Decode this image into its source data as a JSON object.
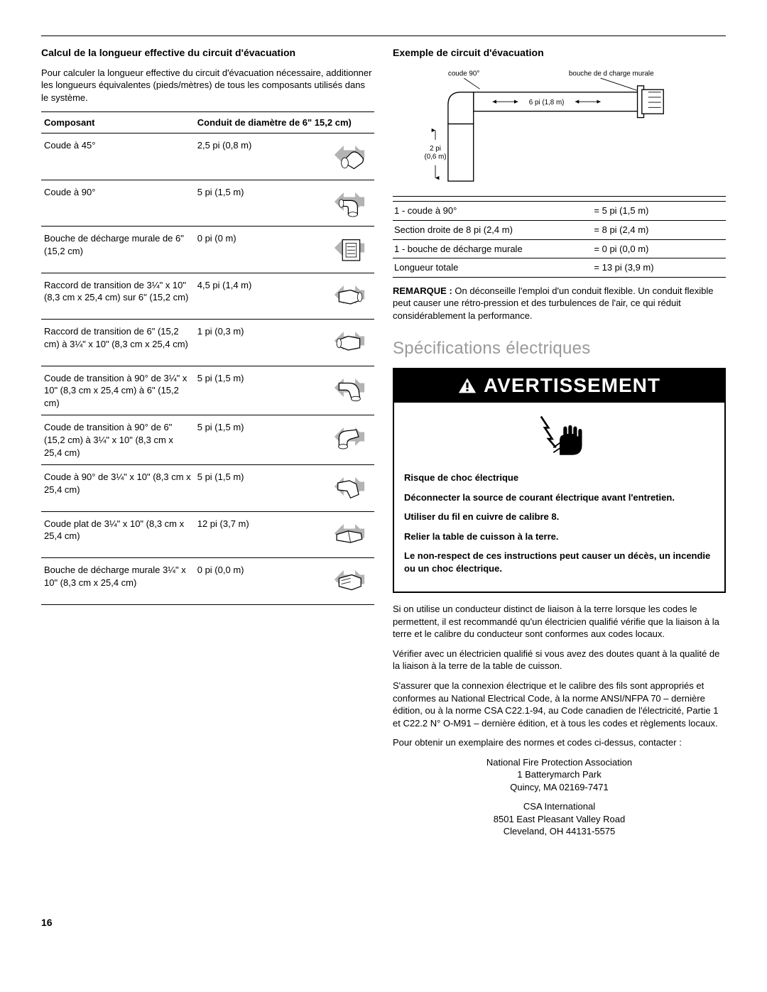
{
  "left": {
    "title": "Calcul de la longueur effective du circuit d'évacuation",
    "intro": "Pour calculer la longueur effective du circuit d'évacuation nécessaire, additionner les longueurs équivalentes (pieds/mètres) de tous les composants utilisés dans le système.",
    "table": {
      "header_component": "Composant",
      "header_duct": "Conduit de diamètre de 6\" 15,2 cm)",
      "rows": [
        {
          "component": "Coude à 45°",
          "length": "2,5 pi (0,8 m)"
        },
        {
          "component": "Coude à 90°",
          "length": "5 pi (1,5 m)"
        },
        {
          "component": "Bouche de décharge murale de 6\" (15,2 cm)",
          "length": "0 pi (0 m)"
        },
        {
          "component": "Raccord de transition de 3¼\" x 10\" (8,3 cm x 25,4 cm) sur 6\" (15,2 cm)",
          "length": "4,5 pi (1,4 m)"
        },
        {
          "component": "Raccord de transition de 6\" (15,2 cm) à 3¼\" x 10\" (8,3 cm x 25,4 cm)",
          "length": "1 pi (0,3 m)"
        },
        {
          "component": "Coude de transition à 90° de 3¼\" x 10\" (8,3 cm x 25,4 cm) à 6\" (15,2 cm)",
          "length": "5 pi (1,5 m)"
        },
        {
          "component": "Coude de transition à 90° de 6\" (15,2 cm) à 3¼\" x 10\" (8,3 cm x 25,4 cm)",
          "length": "5 pi (1,5 m)"
        },
        {
          "component": "Coude à 90° de 3¼\" x 10\" (8,3 cm x 25,4 cm)",
          "length": "5 pi (1,5 m)"
        },
        {
          "component": "Coude plat de 3¼\" x 10\" (8,3 cm x 25,4 cm)",
          "length": "12 pi (3,7 m)"
        },
        {
          "component": "Bouche de décharge murale 3¼\" x 10\" (8,3 cm x 25,4 cm)",
          "length": "0 pi (0,0 m)"
        }
      ]
    }
  },
  "right": {
    "title": "Exemple de circuit d'évacuation",
    "diagram": {
      "label_elbow": "coude   90°",
      "label_wallcap": "bouche de d charge murale",
      "label_6pi": "6 pi (1,8 m)",
      "label_2pi": "2 pi (0,6 m)"
    },
    "example_rows": [
      {
        "item": "1 - coude à 90°",
        "value": "= 5 pi (1,5 m)"
      },
      {
        "item": "Section droite de 8 pi (2,4 m)",
        "value": "= 8 pi (2,4 m)"
      },
      {
        "item": "1 - bouche de décharge murale",
        "value": "= 0 pi (0,0 m)"
      },
      {
        "item": "Longueur totale",
        "value": "= 13 pi (3,9 m)"
      }
    ],
    "remark_label": "REMARQUE :",
    "remark_text": "On déconseille l'emploi d'un conduit flexible. Un conduit flexible peut causer une rétro-pression et des turbulences de l'air, ce qui réduit considérablement la performance.",
    "elec_heading": "Spécifications électriques",
    "warning_word": "AVERTISSEMENT",
    "warning_lines": {
      "l1": "Risque de choc électrique",
      "l2": "Déconnecter la source de courant électrique avant l'entretien.",
      "l3": "Utiliser du fil en cuivre de calibre 8.",
      "l4": "Relier la table de cuisson à la terre.",
      "l5": "Le non-respect de ces instructions peut causer un décès, un incendie ou un choc électrique."
    },
    "para1": "Si on utilise un conducteur distinct de liaison à la terre lorsque les codes le permettent, il est recommandé qu'un électricien qualifié vérifie que la liaison à la terre et le calibre du conducteur sont conformes aux codes locaux.",
    "para2": "Vérifier avec un électricien qualifié si vous avez des doutes quant à la qualité de la liaison à la terre de la table de cuisson.",
    "para3": "S'assurer que la connexion électrique et le calibre des fils sont appropriés et conformes au National Electrical Code, à la norme ANSI/NFPA 70 – dernière édition, ou à la norme CSA C22.1-94, au Code canadien de l'électricité, Partie 1 et C22.2 N° O-M91 – dernière édition, et à tous les codes et règlements locaux.",
    "para4": "Pour obtenir un exemplaire des normes et codes ci-dessus, contacter :",
    "addr1_l1": "National Fire Protection Association",
    "addr1_l2": "1 Batterymarch Park",
    "addr1_l3": "Quincy, MA 02169-7471",
    "addr2_l1": "CSA International",
    "addr2_l2": "8501 East Pleasant Valley Road",
    "addr2_l3": "Cleveland, OH 44131-5575"
  },
  "page_number": "16",
  "colors": {
    "text": "#000000",
    "subhead": "#9a9a9a",
    "icon_gray": "#b3b3b3",
    "icon_line": "#000000"
  }
}
